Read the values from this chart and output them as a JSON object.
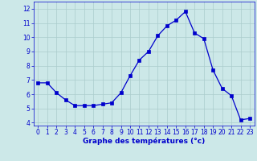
{
  "x": [
    0,
    1,
    2,
    3,
    4,
    5,
    6,
    7,
    8,
    9,
    10,
    11,
    12,
    13,
    14,
    15,
    16,
    17,
    18,
    19,
    20,
    21,
    22,
    23
  ],
  "y": [
    6.8,
    6.8,
    6.1,
    5.6,
    5.2,
    5.2,
    5.2,
    5.3,
    5.4,
    6.1,
    7.3,
    8.4,
    9.0,
    10.1,
    10.8,
    11.2,
    11.8,
    10.3,
    9.9,
    7.7,
    6.4,
    5.9,
    4.2,
    4.3
  ],
  "line_color": "#0000cc",
  "marker": "s",
  "marker_size": 2.5,
  "bg_color": "#cce8e8",
  "grid_color": "#aacccc",
  "xlabel": "Graphe des températures (°c)",
  "xlabel_color": "#0000cc",
  "tick_color": "#0000cc",
  "ylim": [
    3.8,
    12.5
  ],
  "xlim": [
    -0.5,
    23.5
  ],
  "yticks": [
    4,
    5,
    6,
    7,
    8,
    9,
    10,
    11,
    12
  ],
  "xticks": [
    0,
    1,
    2,
    3,
    4,
    5,
    6,
    7,
    8,
    9,
    10,
    11,
    12,
    13,
    14,
    15,
    16,
    17,
    18,
    19,
    20,
    21,
    22,
    23
  ],
  "tick_fontsize": 5.5,
  "xlabel_fontsize": 6.5
}
